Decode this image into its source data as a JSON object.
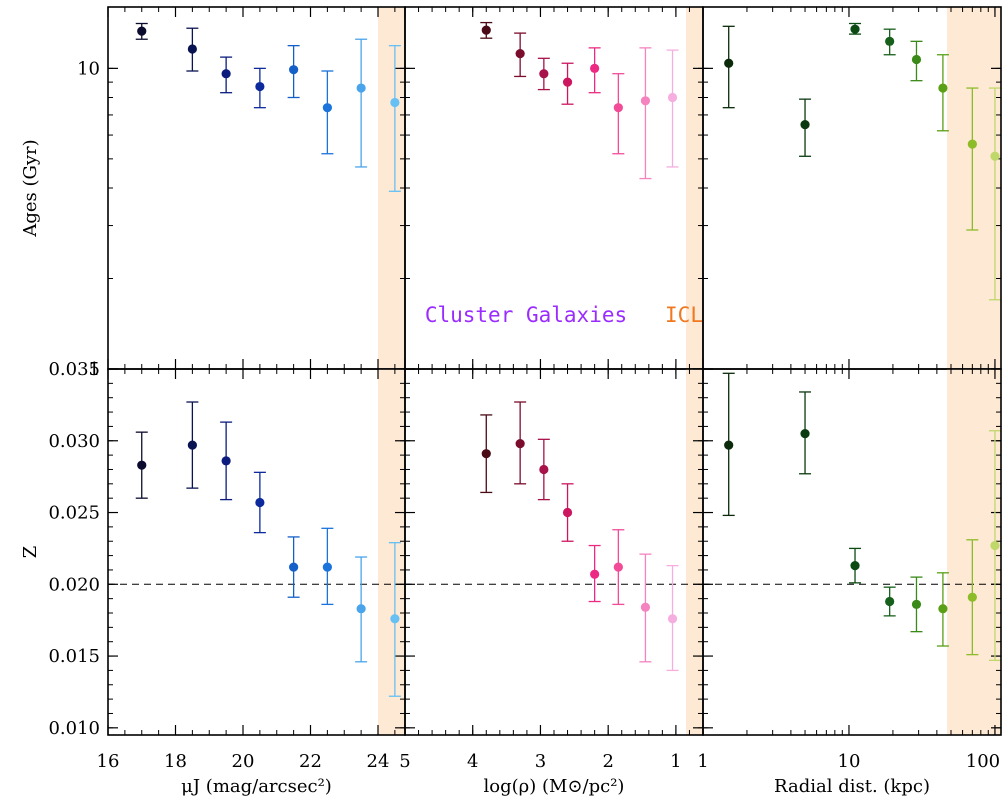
{
  "chart_data": [
    {
      "type": "scatter",
      "panel": "top-left",
      "ylabel": "Ages (Gyr)",
      "yscale": "log",
      "ylim": [
        1,
        16
      ],
      "yticks": [
        1,
        10
      ],
      "ytick_labels": [
        "1",
        "10"
      ],
      "xlim": [
        16,
        24.8
      ],
      "shaded_region": [
        24.0,
        24.8
      ],
      "shade_color": "#fde9d4",
      "points": [
        {
          "x": 17.0,
          "y": 13.3,
          "lo": 12.5,
          "hi": 14.1,
          "color": "#0b0b2e"
        },
        {
          "x": 18.5,
          "y": 11.6,
          "lo": 9.8,
          "hi": 13.6,
          "color": "#0a1352"
        },
        {
          "x": 19.5,
          "y": 9.6,
          "lo": 8.3,
          "hi": 10.9,
          "color": "#0b1c7e"
        },
        {
          "x": 20.5,
          "y": 8.7,
          "lo": 7.4,
          "hi": 10.0,
          "color": "#0c2a9c"
        },
        {
          "x": 21.5,
          "y": 9.9,
          "lo": 8.0,
          "hi": 11.9,
          "color": "#1460c8"
        },
        {
          "x": 22.5,
          "y": 7.4,
          "lo": 5.2,
          "hi": 9.8,
          "color": "#1a74dc"
        },
        {
          "x": 23.5,
          "y": 8.6,
          "lo": 4.7,
          "hi": 12.5,
          "color": "#4aa4ec"
        },
        {
          "x": 24.5,
          "y": 7.7,
          "lo": 3.9,
          "hi": 11.9,
          "color": "#66c0f4"
        }
      ]
    },
    {
      "type": "scatter",
      "panel": "top-middle",
      "yscale": "log",
      "ylim": [
        1,
        16
      ],
      "xlim": [
        5,
        0.6
      ],
      "shaded_region": [
        0.85,
        0.6
      ],
      "shade_color": "#fde9d4",
      "annotations": [
        {
          "text": "Cluster Galaxies",
          "color": "#9b2cff"
        },
        {
          "text": "ICL",
          "color": "#f07820"
        }
      ],
      "points": [
        {
          "x": 3.8,
          "y": 13.4,
          "lo": 12.6,
          "hi": 14.2,
          "color": "#4a0a16"
        },
        {
          "x": 3.3,
          "y": 11.2,
          "lo": 9.4,
          "hi": 13.1,
          "color": "#7a0c2c"
        },
        {
          "x": 2.95,
          "y": 9.6,
          "lo": 8.5,
          "hi": 10.8,
          "color": "#a8124a"
        },
        {
          "x": 2.6,
          "y": 9.0,
          "lo": 7.6,
          "hi": 10.4,
          "color": "#cc1660"
        },
        {
          "x": 2.2,
          "y": 10.0,
          "lo": 8.3,
          "hi": 11.7,
          "color": "#ec2a84"
        },
        {
          "x": 1.85,
          "y": 7.4,
          "lo": 5.2,
          "hi": 9.6,
          "color": "#f24c98"
        },
        {
          "x": 1.45,
          "y": 7.8,
          "lo": 4.3,
          "hi": 11.7,
          "color": "#f483c0"
        },
        {
          "x": 1.05,
          "y": 8.0,
          "lo": 4.7,
          "hi": 11.5,
          "color": "#f6aee0"
        }
      ]
    },
    {
      "type": "scatter",
      "panel": "top-right",
      "yscale": "log",
      "ylim": [
        1,
        16
      ],
      "xscale": "log",
      "xlim": [
        1,
        110
      ],
      "shaded_region": [
        47,
        110
      ],
      "shade_color": "#fde9d4",
      "points": [
        {
          "x": 1.5,
          "y": 10.4,
          "lo": 7.4,
          "hi": 13.8,
          "color": "#0a2a0a"
        },
        {
          "x": 5.0,
          "y": 6.5,
          "lo": 5.1,
          "hi": 7.9,
          "color": "#0b3a10"
        },
        {
          "x": 11.0,
          "y": 13.5,
          "lo": 13.0,
          "hi": 14.1,
          "color": "#0c4a14"
        },
        {
          "x": 19.0,
          "y": 12.3,
          "lo": 11.1,
          "hi": 13.5,
          "color": "#16601c"
        },
        {
          "x": 29.0,
          "y": 10.7,
          "lo": 9.1,
          "hi": 12.3,
          "color": "#3a8a18"
        },
        {
          "x": 44.0,
          "y": 8.6,
          "lo": 6.2,
          "hi": 11.1,
          "color": "#5aa016"
        },
        {
          "x": 70.0,
          "y": 5.6,
          "lo": 2.9,
          "hi": 8.6,
          "color": "#8cbc28"
        },
        {
          "x": 100.0,
          "y": 5.1,
          "lo": 1.7,
          "hi": 8.6,
          "color": "#c0d86a"
        }
      ]
    },
    {
      "type": "scatter",
      "panel": "bottom-left",
      "ylabel": "Z",
      "xlabel": "μJ (mag/arcsec²)",
      "ylim": [
        0.0095,
        0.035
      ],
      "yticks": [
        0.01,
        0.015,
        0.02,
        0.025,
        0.03,
        0.035
      ],
      "ytick_labels": [
        "0.010",
        "0.015",
        "0.020",
        "0.025",
        "0.030",
        "0.035"
      ],
      "xlim": [
        16,
        24.8
      ],
      "xticks": [
        16,
        18,
        20,
        22,
        24
      ],
      "xtick_labels": [
        "16",
        "18",
        "20",
        "22",
        "24"
      ],
      "hline": 0.02,
      "shaded_region": [
        24.0,
        24.8
      ],
      "shade_color": "#fde9d4",
      "points": [
        {
          "x": 17.0,
          "y": 0.0283,
          "lo": 0.026,
          "hi": 0.0306,
          "color": "#0b0b2e"
        },
        {
          "x": 18.5,
          "y": 0.0297,
          "lo": 0.0267,
          "hi": 0.0327,
          "color": "#0a1352"
        },
        {
          "x": 19.5,
          "y": 0.0286,
          "lo": 0.0259,
          "hi": 0.0313,
          "color": "#0b1c7e"
        },
        {
          "x": 20.5,
          "y": 0.0257,
          "lo": 0.0236,
          "hi": 0.0278,
          "color": "#0c2a9c"
        },
        {
          "x": 21.5,
          "y": 0.0212,
          "lo": 0.0191,
          "hi": 0.0233,
          "color": "#1460c8"
        },
        {
          "x": 22.5,
          "y": 0.0212,
          "lo": 0.0186,
          "hi": 0.0239,
          "color": "#1a74dc"
        },
        {
          "x": 23.5,
          "y": 0.0183,
          "lo": 0.0146,
          "hi": 0.0219,
          "color": "#4aa4ec"
        },
        {
          "x": 24.5,
          "y": 0.0176,
          "lo": 0.0122,
          "hi": 0.0229,
          "color": "#66c0f4"
        }
      ]
    },
    {
      "type": "scatter",
      "panel": "bottom-middle",
      "xlabel": "log(ρ) (M⊙/pc²)",
      "ylim": [
        0.0095,
        0.035
      ],
      "xlim": [
        5,
        0.6
      ],
      "xticks": [
        5,
        4,
        3,
        2,
        1
      ],
      "xtick_labels": [
        "5",
        "4",
        "3",
        "2",
        "1"
      ],
      "hline": 0.02,
      "shaded_region": [
        0.85,
        0.6
      ],
      "shade_color": "#fde9d4",
      "points": [
        {
          "x": 3.8,
          "y": 0.0291,
          "lo": 0.0264,
          "hi": 0.0318,
          "color": "#4a0a16"
        },
        {
          "x": 3.3,
          "y": 0.0298,
          "lo": 0.027,
          "hi": 0.0327,
          "color": "#7a0c2c"
        },
        {
          "x": 2.95,
          "y": 0.028,
          "lo": 0.0259,
          "hi": 0.0301,
          "color": "#a8124a"
        },
        {
          "x": 2.6,
          "y": 0.025,
          "lo": 0.023,
          "hi": 0.027,
          "color": "#cc1660"
        },
        {
          "x": 2.2,
          "y": 0.0207,
          "lo": 0.0188,
          "hi": 0.0227,
          "color": "#ec2a84"
        },
        {
          "x": 1.85,
          "y": 0.0212,
          "lo": 0.0186,
          "hi": 0.0238,
          "color": "#f24c98"
        },
        {
          "x": 1.45,
          "y": 0.0184,
          "lo": 0.0146,
          "hi": 0.0221,
          "color": "#f483c0"
        },
        {
          "x": 1.05,
          "y": 0.0176,
          "lo": 0.014,
          "hi": 0.0213,
          "color": "#f6aee0"
        }
      ]
    },
    {
      "type": "scatter",
      "panel": "bottom-right",
      "xlabel": "Radial dist. (kpc)",
      "ylim": [
        0.0095,
        0.035
      ],
      "xscale": "log",
      "xlim": [
        1,
        110
      ],
      "xticks": [
        1,
        10,
        100
      ],
      "xtick_labels": [
        "1",
        "10",
        "100"
      ],
      "hline": 0.02,
      "shaded_region": [
        47,
        110
      ],
      "shade_color": "#fde9d4",
      "points": [
        {
          "x": 1.5,
          "y": 0.0297,
          "lo": 0.0248,
          "hi": 0.0347,
          "color": "#0a2a0a"
        },
        {
          "x": 5.0,
          "y": 0.0305,
          "lo": 0.0277,
          "hi": 0.0334,
          "color": "#0b3a10"
        },
        {
          "x": 11.0,
          "y": 0.0213,
          "lo": 0.0201,
          "hi": 0.0225,
          "color": "#0c4a14"
        },
        {
          "x": 19.0,
          "y": 0.0188,
          "lo": 0.0178,
          "hi": 0.0198,
          "color": "#16601c"
        },
        {
          "x": 29.0,
          "y": 0.0186,
          "lo": 0.0167,
          "hi": 0.0205,
          "color": "#3a8a18"
        },
        {
          "x": 44.0,
          "y": 0.0183,
          "lo": 0.0157,
          "hi": 0.0208,
          "color": "#5aa016"
        },
        {
          "x": 70.0,
          "y": 0.0191,
          "lo": 0.0151,
          "hi": 0.0231,
          "color": "#8cbc28"
        },
        {
          "x": 100.0,
          "y": 0.0227,
          "lo": 0.0147,
          "hi": 0.0307,
          "color": "#c0d86a"
        }
      ]
    }
  ]
}
